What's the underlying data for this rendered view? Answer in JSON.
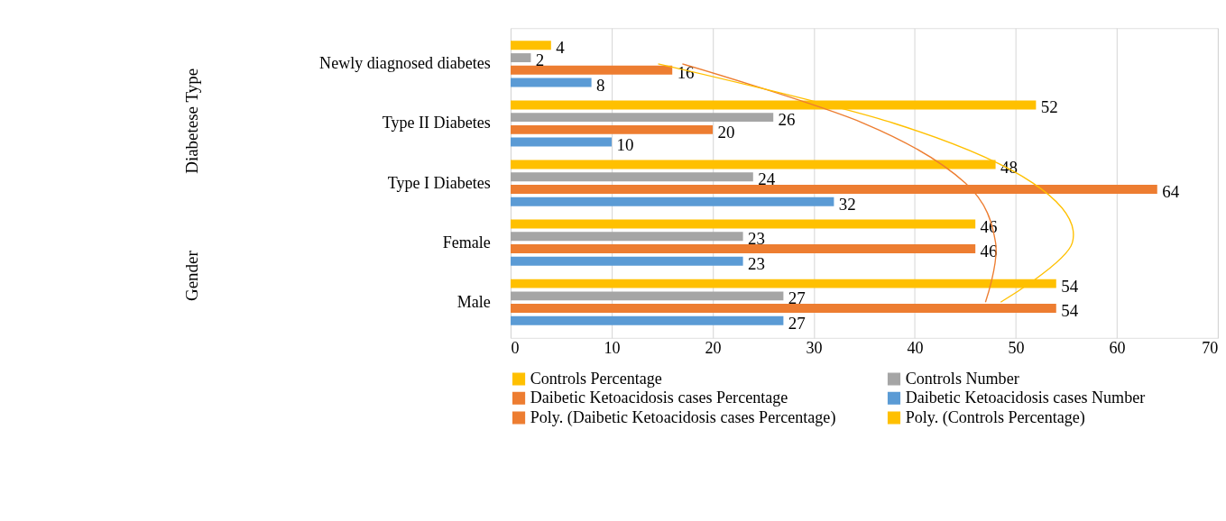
{
  "chart_data": {
    "type": "bar",
    "orientation": "horizontal",
    "categories": [
      "Newly diagnosed diabetes",
      "Type II Diabetes",
      "Type I Diabetes",
      "Female",
      "Male"
    ],
    "series": [
      {
        "name": "Controls Percentage",
        "color": "#ffc000",
        "values": [
          4,
          52,
          48,
          46,
          54
        ],
        "value_labels": [
          "4",
          "52",
          "48",
          "46",
          "54"
        ]
      },
      {
        "name": "Controls Number",
        "color": "#a5a5a5",
        "values": [
          2,
          26,
          24,
          23,
          27
        ],
        "value_labels": [
          "2",
          "26",
          "24",
          "23",
          "27"
        ]
      },
      {
        "name": "Daibetic Ketoacidosis cases Percentage",
        "color": "#ed7d31",
        "values": [
          16,
          20,
          64,
          46,
          54
        ],
        "value_labels": [
          "16",
          "20",
          "64",
          "46",
          "54"
        ]
      },
      {
        "name": "Daibetic Ketoacidosis cases Number",
        "color": "#5b9bd5",
        "values": [
          8,
          10,
          32,
          23,
          27
        ],
        "value_labels": [
          "8",
          "10",
          "32",
          "23",
          "27"
        ]
      },
      {
        "name": "Poly. (Daibetic Ketoacidosis cases Percentage)",
        "type": "line",
        "color": "#ed7d31",
        "values": [
          17,
          35,
          45,
          48,
          47
        ]
      },
      {
        "name": "Poly. (Controls Percentage)",
        "type": "line",
        "color": "#ffc000",
        "values": [
          14.6,
          38,
          51.7,
          55.6,
          48.5
        ]
      }
    ],
    "xlim": [
      0,
      70
    ],
    "xticks": [
      0,
      10,
      20,
      30,
      40,
      50,
      60,
      70
    ],
    "grid": "x",
    "legend": "bottom",
    "annotations": [
      "Diabetese Type",
      "Gender"
    ]
  }
}
